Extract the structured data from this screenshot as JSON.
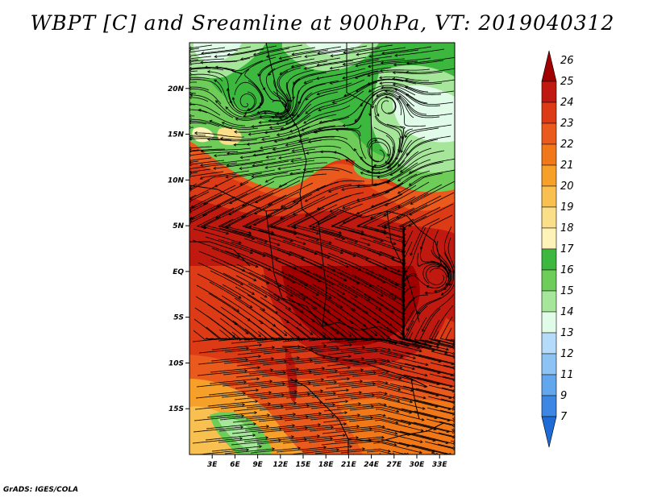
{
  "title": "WBPT [C] and Sreamline at 900hPa, VT: 2019040312",
  "credit": "GrADS: IGES/COLA",
  "map": {
    "lon_range": [
      0,
      35
    ],
    "lat_range": [
      -20,
      25
    ],
    "x_ticks": [
      "3E",
      "6E",
      "9E",
      "12E",
      "15E",
      "18E",
      "21E",
      "24E",
      "27E",
      "30E",
      "33E"
    ],
    "x_tick_values": [
      3,
      6,
      9,
      12,
      15,
      18,
      21,
      24,
      27,
      30,
      33
    ],
    "y_ticks": [
      "20N",
      "15N",
      "10N",
      "5N",
      "EQ",
      "5S",
      "10S",
      "15S"
    ],
    "y_tick_values": [
      20,
      15,
      10,
      5,
      0,
      -5,
      -10,
      -15
    ]
  },
  "colorbar": {
    "levels": [
      "26",
      "25",
      "24",
      "23",
      "22",
      "21",
      "20",
      "19",
      "18",
      "17",
      "16",
      "15",
      "14",
      "13",
      "12",
      "11",
      "9",
      "7"
    ],
    "colors": [
      "#a00000",
      "#c01a10",
      "#dc3b16",
      "#ea5a1c",
      "#f07818",
      "#f6a02a",
      "#f8c050",
      "#fade88",
      "#fdf3b8",
      "#3db83e",
      "#6ecd58",
      "#a6e69a",
      "#e0fbe8",
      "#b4dcfa",
      "#8cc3f4",
      "#62a6ee",
      "#3c87e4",
      "#1f6bd6"
    ]
  }
}
